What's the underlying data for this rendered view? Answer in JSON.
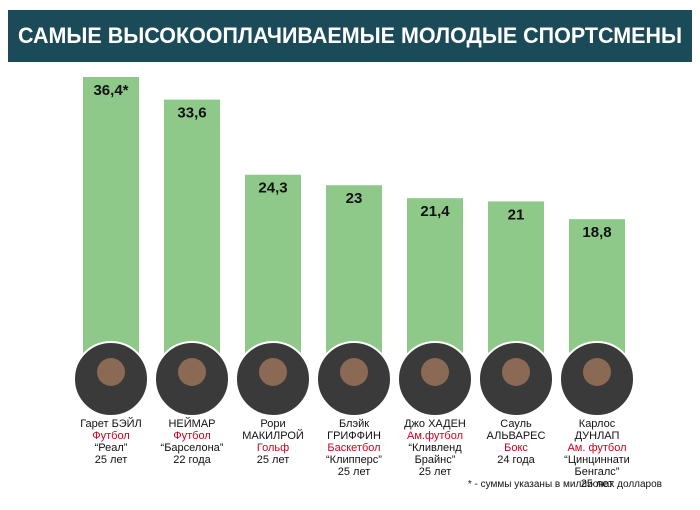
{
  "chart_data": {
    "type": "bar",
    "title": "САМЫЕ ВЫСОКООПЛАЧИВАЕМЫЕ МОЛОДЫЕ СПОРТСМЕНЫ",
    "categories": [
      "Гарет БЭЙЛ",
      "НЕЙМАР",
      "Рори МАКИЛРОЙ",
      "Блэйк ГРИФФИН",
      "Джо ХАДЕН",
      "Сауль АЛЬВАРЕС",
      "Карлос ДУНЛАП"
    ],
    "sports": [
      "Футбол",
      "Футбол",
      "Гольф",
      "Баскетбол",
      "Ам.футбол",
      "Бокс",
      "Ам. футбол"
    ],
    "teams": [
      "“Реал”",
      "“Барселона”",
      null,
      "“Клипперс”",
      "“Кливленд Брайнс”",
      null,
      "“Цинциннати Бенгалс”"
    ],
    "ages": [
      "25 лет",
      "22 года",
      "25 лет",
      "25 лет",
      "25 лет",
      "24 года",
      "25 лет"
    ],
    "values": [
      36.4,
      33.6,
      24.3,
      23,
      21.4,
      21,
      18.8
    ],
    "value_labels": [
      "36,4*",
      "33,6",
      "24,3",
      "23",
      "21,4",
      "21",
      "18,8"
    ],
    "color": "#8fc98a",
    "footnote": "* - суммы указаны в миллионах долларов"
  }
}
